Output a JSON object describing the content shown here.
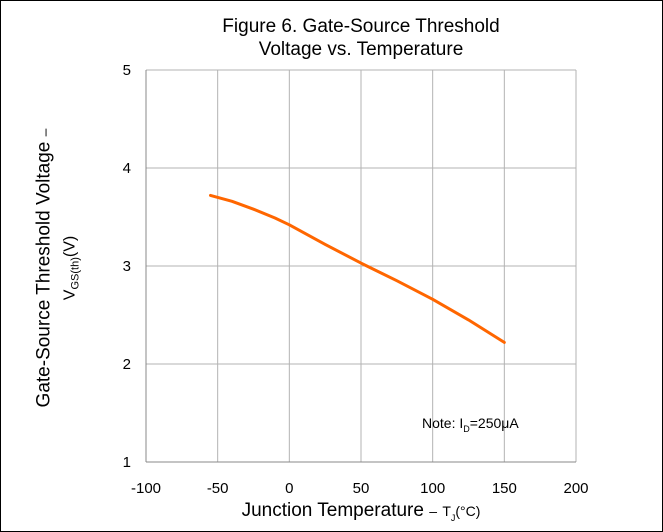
{
  "chart_data": {
    "type": "line",
    "title": [
      "Figure 6. Gate-Source Threshold",
      "Voltage vs. Temperature"
    ],
    "xlabel": {
      "text": "Junction Temperature",
      "dash": "–",
      "symbol": "T",
      "symbol_sub": "J",
      "unit": "(°C)"
    },
    "ylabel": {
      "line1": "Gate-Source Threshold Voltage",
      "dash": "–",
      "symbol": "V",
      "symbol_sub": "GS(th)",
      "unit": "(V)"
    },
    "xlim": [
      -100,
      200
    ],
    "ylim": [
      1,
      5
    ],
    "xticks": [
      -100,
      -50,
      0,
      50,
      100,
      150,
      200
    ],
    "yticks": [
      1,
      2,
      3,
      4,
      5
    ],
    "grid": true,
    "annotation": {
      "prefix": "Note: I",
      "sub": "D",
      "suffix": "=250μA"
    },
    "series": [
      {
        "color": "#ff6600",
        "x": [
          -55,
          -40,
          -25,
          -10,
          0,
          25,
          50,
          75,
          100,
          125,
          150
        ],
        "y": [
          3.72,
          3.66,
          3.58,
          3.49,
          3.42,
          3.22,
          3.03,
          2.85,
          2.66,
          2.45,
          2.22
        ]
      }
    ]
  }
}
